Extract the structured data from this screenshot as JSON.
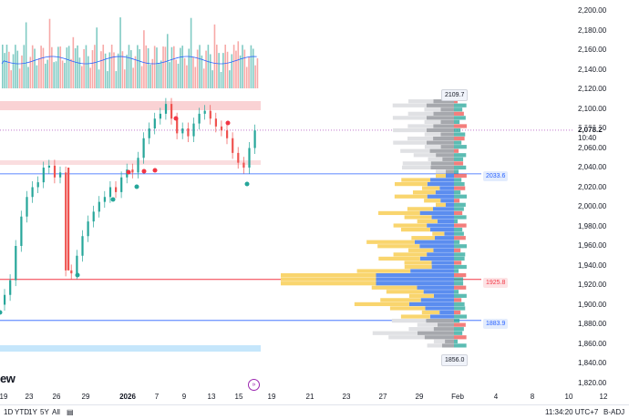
{
  "y_axis": {
    "ticks": [
      "2,200.00",
      "2,180.00",
      "2,160.00",
      "2,140.00",
      "2,120.00",
      "2,100.00",
      "2,080.00",
      "2,060.00",
      "2,040.00",
      "2,020.00",
      "2,000.00",
      "1,980.00",
      "1,960.00",
      "1,940.00",
      "1,920.00",
      "1,900.00",
      "1,880.00",
      "1,860.00",
      "1,840.00",
      "1,820.00"
    ],
    "values": [
      2200,
      2180,
      2160,
      2140,
      2120,
      2100,
      2080,
      2060,
      2040,
      2020,
      2000,
      1980,
      1960,
      1940,
      1920,
      1900,
      1880,
      1860,
      1840,
      1820
    ],
    "current_price": "2,078.2",
    "countdown": "10:40"
  },
  "x_axis": {
    "labels": [
      {
        "text": "19",
        "bold": false
      },
      {
        "text": "23",
        "bold": false
      },
      {
        "text": "26",
        "bold": false
      },
      {
        "text": "29",
        "bold": false
      },
      {
        "text": "2026",
        "bold": true
      },
      {
        "text": "7",
        "bold": false
      },
      {
        "text": "9",
        "bold": false
      },
      {
        "text": "13",
        "bold": false
      },
      {
        "text": "15",
        "bold": false
      },
      {
        "text": "19",
        "bold": false
      },
      {
        "text": "21",
        "bold": false
      },
      {
        "text": "23",
        "bold": false
      },
      {
        "text": "27",
        "bold": false
      },
      {
        "text": "29",
        "bold": false
      },
      {
        "text": "Feb",
        "bold": false
      },
      {
        "text": "4",
        "bold": false
      },
      {
        "text": "8",
        "bold": false
      },
      {
        "text": "10",
        "bold": false
      },
      {
        "text": "12",
        "bold": false
      }
    ]
  },
  "levels": {
    "poc_label": "1925.8",
    "vah_label": "2033.6",
    "val_label": "1883.9",
    "high_label": "2109.7",
    "low_label": "1856.0",
    "poc_value": 1925.8,
    "vah_value": 2033.6,
    "val_value": 1883.9,
    "high_value": 2109.7,
    "low_value": 1856.0
  },
  "bottom_bar": {
    "ranges": [
      "1D",
      "YTD",
      "1Y",
      "5Y",
      "All"
    ],
    "time": "11:34:20 UTC+7",
    "adj": "B-ADJ"
  },
  "logo_text": "ew",
  "colors": {
    "up": "#26a69a",
    "down": "#ef5350",
    "ma": "#2962ff",
    "poc": "#f23645",
    "vah_val": "#2962ff",
    "current": "#9c27b0",
    "vp_blue": "#5b8def",
    "vp_yellow": "#f9d56e",
    "vp_gray": "#a6a8ad"
  }
}
